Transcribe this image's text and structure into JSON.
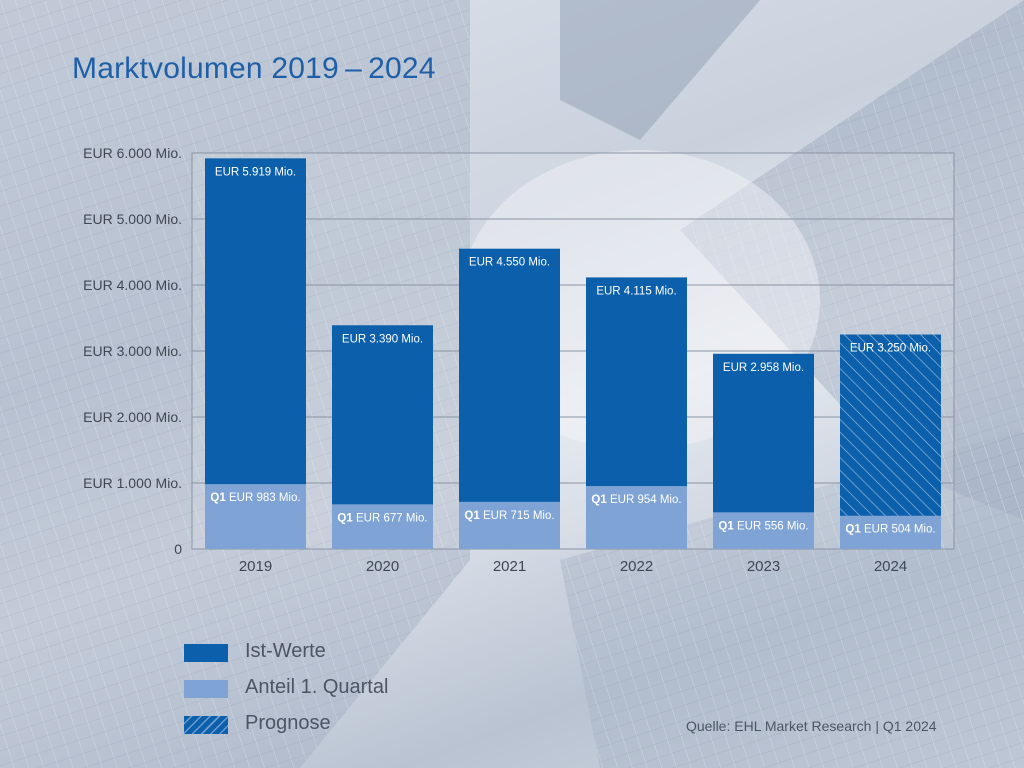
{
  "title": "Marktvolumen 2019 – 2024",
  "colors": {
    "actual": "#0b5fab",
    "quarter": "#7ea3d4",
    "forecast": "#0b5fab",
    "title": "#1f5fa7"
  },
  "chart_data": {
    "type": "bar",
    "stacked": "overlay",
    "categories": [
      "2019",
      "2020",
      "2021",
      "2022",
      "2023",
      "2024"
    ],
    "series": [
      {
        "name": "Ist-Werte",
        "values": [
          5919,
          3390,
          4550,
          4115,
          2958,
          null
        ],
        "labels": [
          "EUR 5.919 Mio.",
          "EUR 3.390 Mio.",
          "EUR 4.550 Mio.",
          "EUR 4.115 Mio.",
          "EUR 2.958 Mio.",
          ""
        ]
      },
      {
        "name": "Prognose",
        "values": [
          null,
          null,
          null,
          null,
          null,
          3250
        ],
        "labels": [
          "",
          "",
          "",
          "",
          "",
          "EUR 3.250 Mio."
        ]
      },
      {
        "name": "Anteil 1. Quartal",
        "values": [
          983,
          677,
          715,
          954,
          556,
          504
        ],
        "labels": [
          "EUR 983 Mio.",
          "EUR 677 Mio.",
          "EUR 715 Mio.",
          "EUR 954 Mio.",
          "EUR 556 Mio.",
          "EUR 504 Mio."
        ],
        "label_prefix": "Q1"
      }
    ],
    "ylim": [
      0,
      6000
    ],
    "yticks": [
      0,
      1000,
      2000,
      3000,
      4000,
      5000,
      6000
    ],
    "ytick_labels": [
      "0",
      "EUR 1.000 Mio.",
      "EUR 2.000 Mio.",
      "EUR 3.000 Mio.",
      "EUR 4.000 Mio.",
      "EUR 5.000 Mio.",
      "EUR 6.000 Mio."
    ],
    "grid": true,
    "legend": "bottom-left"
  },
  "legend": [
    {
      "label": "Ist-Werte",
      "style": "actual"
    },
    {
      "label": "Anteil 1. Quartal",
      "style": "quarter"
    },
    {
      "label": "Prognose",
      "style": "forecast"
    }
  ],
  "source": "Quelle: EHL Market Research | Q1 2024"
}
